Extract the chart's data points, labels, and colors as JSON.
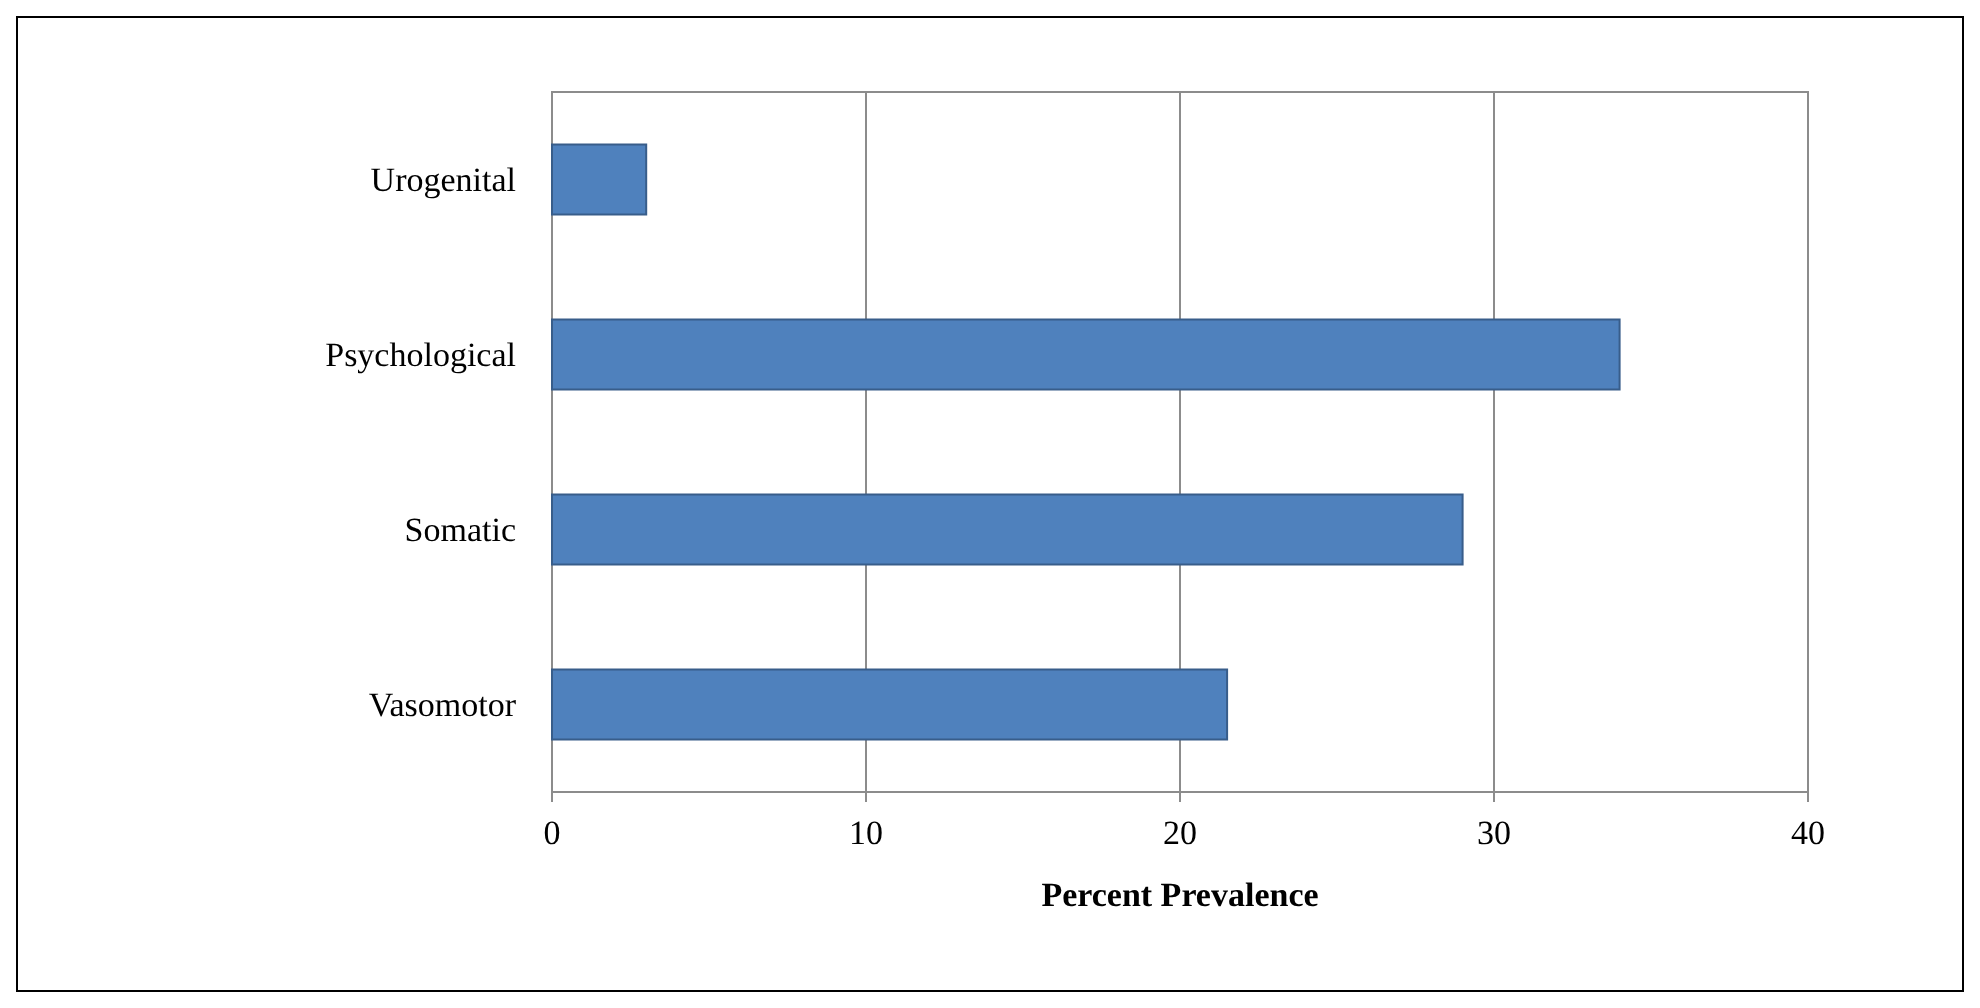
{
  "chart_data": {
    "type": "bar",
    "orientation": "horizontal",
    "categories": [
      "Urogenital",
      "Psychological",
      "Somatic",
      "Vasomotor"
    ],
    "values": [
      3,
      34,
      29,
      21.5
    ],
    "color": "#4f81bd",
    "xlim": [
      0,
      40
    ],
    "xticks": [
      0,
      10,
      20,
      30,
      40
    ],
    "xlabel": "Percent Prevalence",
    "grid": "x"
  }
}
